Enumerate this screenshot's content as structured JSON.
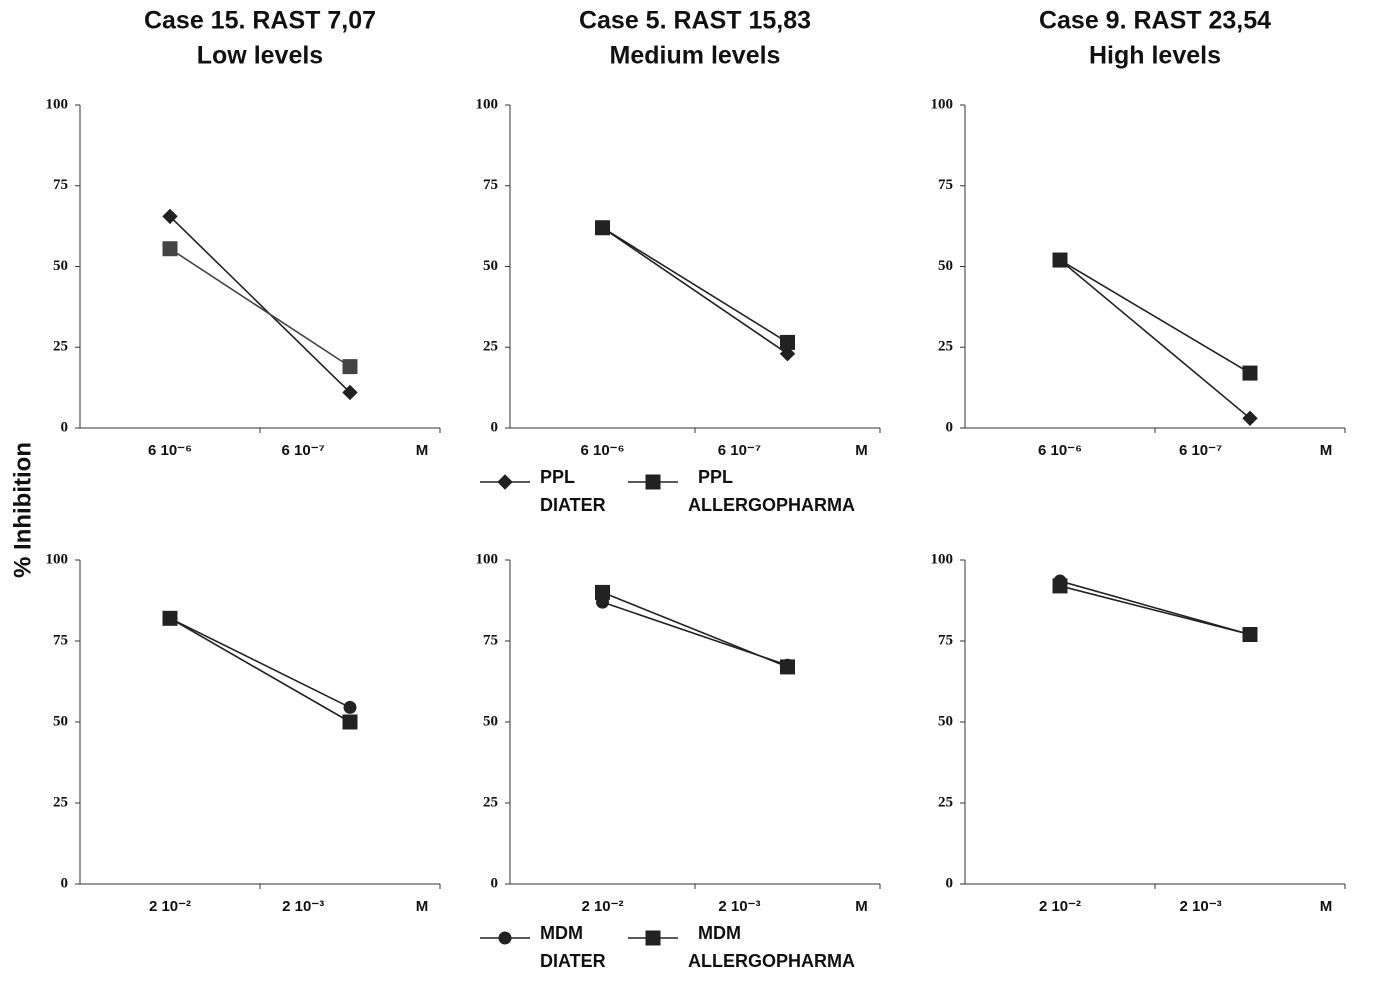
{
  "ylabel": "% Inhibition",
  "chart_data": [
    {
      "type": "line",
      "title": "Case 15. RAST 7,07",
      "subtitle": "Low levels",
      "categories": [
        "6 10⁻⁶",
        "6 10⁻⁷"
      ],
      "xlabel": "M",
      "ylim": [
        0,
        100
      ],
      "yticks": [
        0,
        25,
        50,
        75,
        100
      ],
      "series": [
        {
          "color": "#222222",
          "marker": "diamond",
          "values": [
            65.5,
            11
          ]
        },
        {
          "color": "#444444",
          "marker": "square",
          "values": [
            55.5,
            19
          ]
        }
      ]
    },
    {
      "type": "line",
      "title": "Case 5. RAST 15,83",
      "subtitle": "Medium levels",
      "categories": [
        "6 10⁻⁶",
        "6 10⁻⁷"
      ],
      "xlabel": "M",
      "ylim": [
        0,
        100
      ],
      "yticks": [
        0,
        25,
        50,
        75,
        100
      ],
      "legend": "bottom",
      "series": [
        {
          "name": "PPL DIATER",
          "color": "#222222",
          "marker": "diamond",
          "values": [
            62,
            23
          ]
        },
        {
          "name": "PPL ALLERGOPHARMA",
          "color": "#222222",
          "marker": "square",
          "values": [
            62,
            26.5
          ]
        }
      ]
    },
    {
      "type": "line",
      "title": "Case 9. RAST 23,54",
      "subtitle": "High levels",
      "categories": [
        "6 10⁻⁶",
        "6 10⁻⁷"
      ],
      "xlabel": "M",
      "ylim": [
        0,
        100
      ],
      "yticks": [
        0,
        25,
        50,
        75,
        100
      ],
      "series": [
        {
          "color": "#222222",
          "marker": "diamond",
          "values": [
            52,
            3
          ]
        },
        {
          "color": "#222222",
          "marker": "square",
          "values": [
            52,
            17
          ]
        }
      ]
    },
    {
      "type": "line",
      "categories": [
        "2 10⁻²",
        "2 10⁻³"
      ],
      "xlabel": "M",
      "ylim": [
        0,
        100
      ],
      "yticks": [
        0,
        25,
        50,
        75,
        100
      ],
      "series": [
        {
          "color": "#222222",
          "marker": "circle",
          "values": [
            82,
            54.5
          ]
        },
        {
          "color": "#222222",
          "marker": "square",
          "values": [
            82,
            50
          ]
        }
      ]
    },
    {
      "type": "line",
      "categories": [
        "2 10⁻²",
        "2 10⁻³"
      ],
      "xlabel": "M",
      "ylim": [
        0,
        100
      ],
      "yticks": [
        0,
        25,
        50,
        75,
        100
      ],
      "legend": "bottom",
      "series": [
        {
          "name": "MDM DIATER",
          "color": "#222222",
          "marker": "circle",
          "values": [
            87,
            67.5
          ]
        },
        {
          "name": "MDM ALLERGOPHARMA",
          "color": "#222222",
          "marker": "square",
          "values": [
            90,
            67
          ]
        }
      ]
    },
    {
      "type": "line",
      "categories": [
        "2 10⁻²",
        "2 10⁻³"
      ],
      "xlabel": "M",
      "ylim": [
        0,
        100
      ],
      "yticks": [
        0,
        25,
        50,
        75,
        100
      ],
      "series": [
        {
          "color": "#222222",
          "marker": "circle",
          "values": [
            93.5,
            77
          ]
        },
        {
          "color": "#222222",
          "marker": "square",
          "values": [
            92,
            77
          ]
        }
      ]
    }
  ]
}
